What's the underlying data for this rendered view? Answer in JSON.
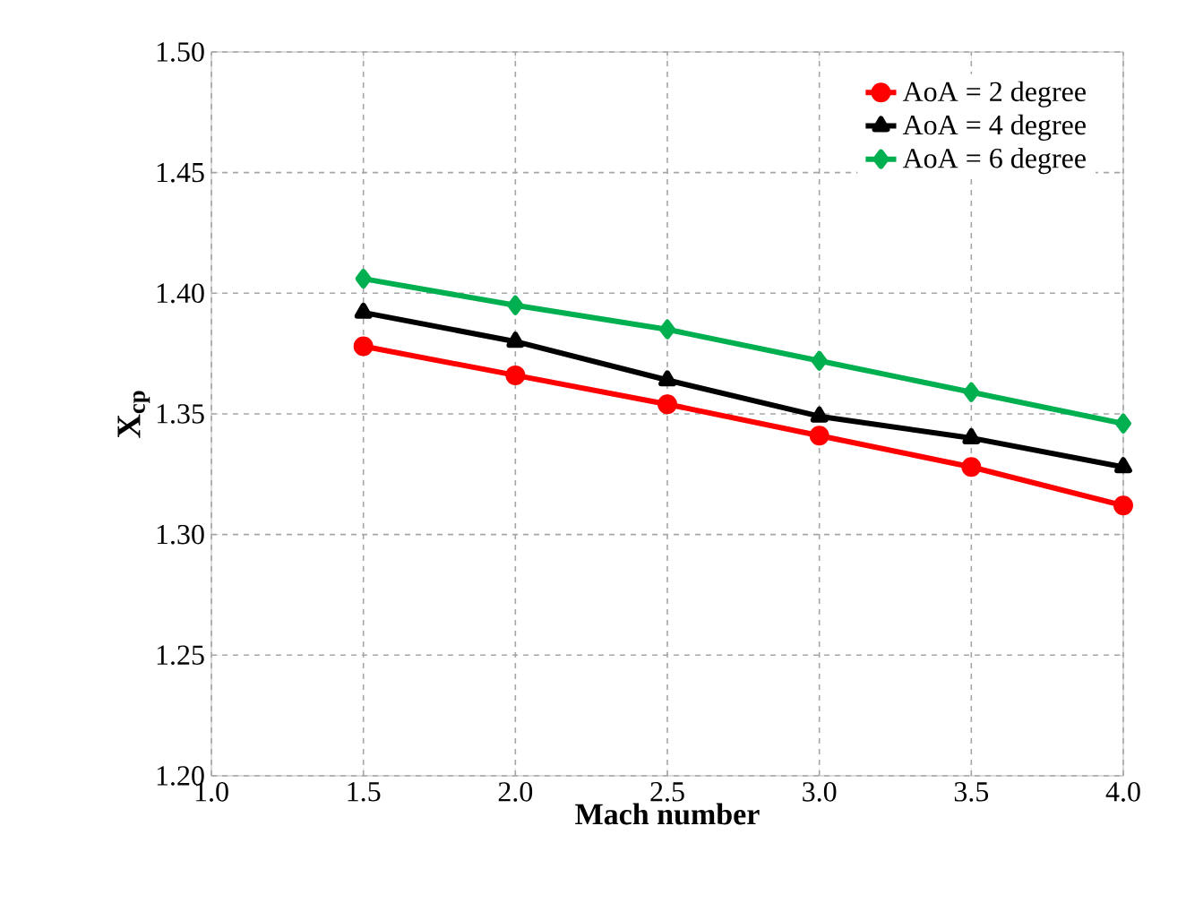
{
  "chart_data": {
    "type": "line",
    "xlabel": "Mach number",
    "ylabel": "X$_{cp}$",
    "x": [
      1.5,
      2.0,
      2.5,
      3.0,
      3.5,
      4.0
    ],
    "series": [
      {
        "name": "AoA = 2 degree",
        "color": "#ff0000",
        "marker": "circle",
        "values": [
          1.378,
          1.366,
          1.354,
          1.341,
          1.328,
          1.312
        ]
      },
      {
        "name": "AoA = 4 degree",
        "color": "#000000",
        "marker": "triangle",
        "values": [
          1.392,
          1.38,
          1.364,
          1.349,
          1.34,
          1.328
        ]
      },
      {
        "name": "AoA = 6 degree",
        "color": "#00b050",
        "marker": "diamond",
        "values": [
          1.406,
          1.395,
          1.385,
          1.372,
          1.359,
          1.346
        ]
      }
    ],
    "xlim": [
      1.0,
      4.0
    ],
    "ylim": [
      1.2,
      1.5
    ],
    "xticks": [
      {
        "value": 1.0,
        "label": "1.0"
      },
      {
        "value": 1.5,
        "label": "1.5"
      },
      {
        "value": 2.0,
        "label": "2.0"
      },
      {
        "value": 2.5,
        "label": "2.5"
      },
      {
        "value": 3.0,
        "label": "3.0"
      },
      {
        "value": 3.5,
        "label": "3.5"
      },
      {
        "value": 4.0,
        "label": "4.0"
      }
    ],
    "yticks": [
      {
        "value": 1.2,
        "label": "1.20"
      },
      {
        "value": 1.25,
        "label": "1.25"
      },
      {
        "value": 1.3,
        "label": "1.30"
      },
      {
        "value": 1.35,
        "label": "1.35"
      },
      {
        "value": 1.4,
        "label": "1.40"
      },
      {
        "value": 1.45,
        "label": "1.45"
      },
      {
        "value": 1.5,
        "label": "1.50"
      }
    ],
    "grid": true,
    "legend": "top right",
    "line_style": "solid"
  }
}
